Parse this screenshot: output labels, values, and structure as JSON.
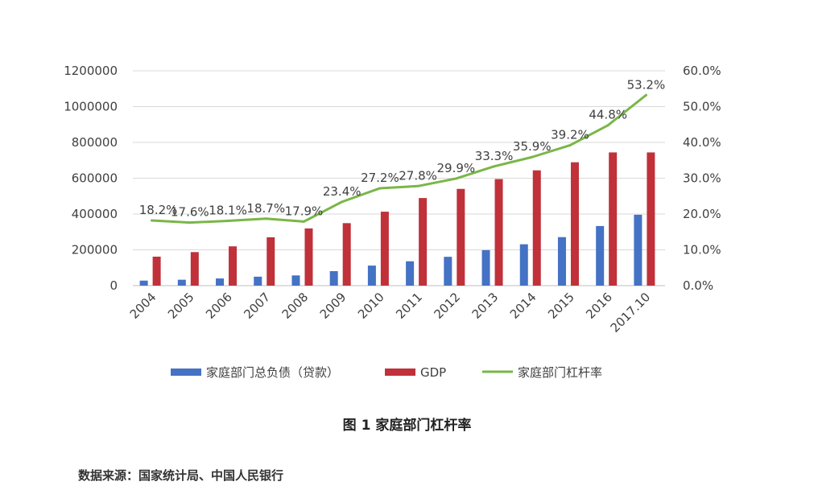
{
  "chart_data": {
    "type": "bar+line",
    "title": "图 1 家庭部门杠杆率",
    "source": "数据来源：国家统计局、中国人民银行",
    "categories": [
      "2004",
      "2005",
      "2006",
      "2007",
      "2008",
      "2009",
      "2010",
      "2011",
      "2012",
      "2013",
      "2014",
      "2015",
      "2016",
      "2017.10"
    ],
    "series": [
      {
        "name": "家庭部门总负债（贷款）",
        "type": "bar",
        "axis": "left",
        "color": "#4472C4",
        "values": [
          28000,
          33000,
          40000,
          50000,
          57000,
          81000,
          112000,
          136000,
          161000,
          198000,
          231000,
          271000,
          333000,
          396000
        ]
      },
      {
        "name": "GDP",
        "type": "bar",
        "axis": "left",
        "color": "#C0313A",
        "values": [
          161840,
          187319,
          219439,
          270232,
          319516,
          349081,
          413030,
          489301,
          540367,
          595244,
          643974,
          689052,
          744127,
          744127
        ]
      },
      {
        "name": "家庭部门杠杆率",
        "type": "line",
        "axis": "right",
        "color": "#7AB648",
        "values": [
          18.2,
          17.6,
          18.1,
          18.7,
          17.9,
          23.4,
          27.2,
          27.8,
          29.9,
          33.3,
          35.9,
          39.2,
          44.8,
          53.2
        ],
        "labels": [
          "18.2%",
          "17.6%",
          "18.1%",
          "18.7%",
          "17.9%",
          "23.4%",
          "27.2%",
          "27.8%",
          "29.9%",
          "33.3%",
          "35.9%",
          "39.2%",
          "44.8%",
          "53.2%"
        ]
      }
    ],
    "y_left": {
      "min": 0,
      "max": 1200000,
      "ticks": [
        0,
        200000,
        400000,
        600000,
        800000,
        1000000,
        1200000
      ],
      "tick_labels": [
        "0",
        "200000",
        "400000",
        "600000",
        "800000",
        "1000000",
        "1200000"
      ]
    },
    "y_right": {
      "min": 0,
      "max": 60,
      "ticks": [
        0,
        10,
        20,
        30,
        40,
        50,
        60
      ],
      "tick_labels": [
        "0.0%",
        "10.0%",
        "20.0%",
        "30.0%",
        "40.0%",
        "50.0%",
        "60.0%"
      ]
    },
    "grid": true,
    "legend_position": "bottom"
  }
}
